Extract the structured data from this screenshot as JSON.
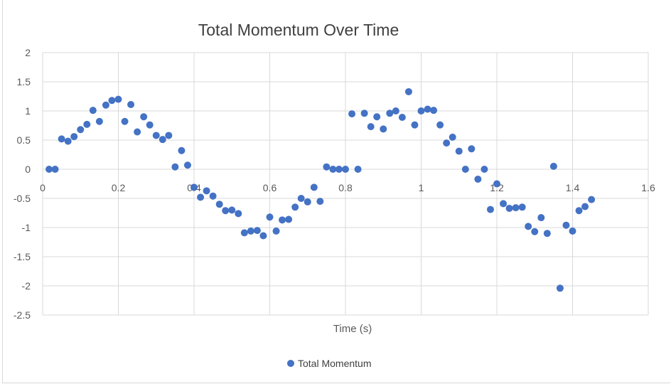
{
  "chart_data": {
    "type": "scatter",
    "title": "Total Momentum Over Time",
    "xlabel": "Time (s)",
    "ylabel": "",
    "xlim": [
      0,
      1.6
    ],
    "ylim": [
      -2.5,
      2
    ],
    "x_ticks": [
      0,
      0.2,
      0.4,
      0.6,
      0.8,
      1,
      1.2,
      1.4,
      1.6
    ],
    "x_tick_labels": [
      "0",
      "0.2",
      "0.4",
      "0.6",
      "0.8",
      "1",
      "1.2",
      "1.4",
      "1.6"
    ],
    "y_ticks": [
      2,
      1.5,
      1,
      0.5,
      0,
      -0.5,
      -1,
      -1.5,
      -2,
      -2.5
    ],
    "y_tick_labels": [
      "2",
      "1.5",
      "1",
      "0.5",
      "0",
      "-0.5",
      "-1",
      "-1.5",
      "-2",
      "-2.5"
    ],
    "grid": true,
    "legend_position": "bottom",
    "marker_color": "#4472c4",
    "series": [
      {
        "name": "Total Momentum",
        "points": [
          [
            0.017,
            0.0
          ],
          [
            0.033,
            0.0
          ],
          [
            0.05,
            0.52
          ],
          [
            0.067,
            0.48
          ],
          [
            0.083,
            0.56
          ],
          [
            0.1,
            0.68
          ],
          [
            0.117,
            0.77
          ],
          [
            0.133,
            1.01
          ],
          [
            0.15,
            0.82
          ],
          [
            0.167,
            1.1
          ],
          [
            0.183,
            1.18
          ],
          [
            0.2,
            1.2
          ],
          [
            0.217,
            0.82
          ],
          [
            0.233,
            1.11
          ],
          [
            0.25,
            0.64
          ],
          [
            0.267,
            0.9
          ],
          [
            0.283,
            0.76
          ],
          [
            0.3,
            0.58
          ],
          [
            0.317,
            0.51
          ],
          [
            0.333,
            0.58
          ],
          [
            0.35,
            0.04
          ],
          [
            0.367,
            0.32
          ],
          [
            0.383,
            0.07
          ],
          [
            0.4,
            -0.31
          ],
          [
            0.417,
            -0.48
          ],
          [
            0.433,
            -0.37
          ],
          [
            0.45,
            -0.46
          ],
          [
            0.467,
            -0.6
          ],
          [
            0.483,
            -0.71
          ],
          [
            0.5,
            -0.7
          ],
          [
            0.517,
            -0.76
          ],
          [
            0.533,
            -1.09
          ],
          [
            0.55,
            -1.06
          ],
          [
            0.567,
            -1.05
          ],
          [
            0.583,
            -1.14
          ],
          [
            0.6,
            -0.82
          ],
          [
            0.617,
            -1.06
          ],
          [
            0.633,
            -0.87
          ],
          [
            0.65,
            -0.86
          ],
          [
            0.667,
            -0.65
          ],
          [
            0.683,
            -0.5
          ],
          [
            0.7,
            -0.56
          ],
          [
            0.717,
            -0.31
          ],
          [
            0.733,
            -0.55
          ],
          [
            0.75,
            0.04
          ],
          [
            0.767,
            0.0
          ],
          [
            0.783,
            0.0
          ],
          [
            0.8,
            0.0
          ],
          [
            0.817,
            0.95
          ],
          [
            0.833,
            0.0
          ],
          [
            0.85,
            0.96
          ],
          [
            0.867,
            0.73
          ],
          [
            0.883,
            0.9
          ],
          [
            0.9,
            0.69
          ],
          [
            0.917,
            0.96
          ],
          [
            0.933,
            1.0
          ],
          [
            0.95,
            0.89
          ],
          [
            0.967,
            1.33
          ],
          [
            0.983,
            0.76
          ],
          [
            1.0,
            1.0
          ],
          [
            1.017,
            1.03
          ],
          [
            1.033,
            1.01
          ],
          [
            1.05,
            0.76
          ],
          [
            1.067,
            0.45
          ],
          [
            1.083,
            0.55
          ],
          [
            1.1,
            0.31
          ],
          [
            1.117,
            0.0
          ],
          [
            1.133,
            0.35
          ],
          [
            1.15,
            -0.17
          ],
          [
            1.167,
            0.0
          ],
          [
            1.183,
            -0.69
          ],
          [
            1.2,
            -0.25
          ],
          [
            1.217,
            -0.59
          ],
          [
            1.233,
            -0.67
          ],
          [
            1.25,
            -0.66
          ],
          [
            1.267,
            -0.65
          ],
          [
            1.283,
            -0.98
          ],
          [
            1.3,
            -1.07
          ],
          [
            1.317,
            -0.83
          ],
          [
            1.333,
            -1.1
          ],
          [
            1.35,
            0.05
          ],
          [
            1.367,
            -2.04
          ],
          [
            1.383,
            -0.96
          ],
          [
            1.4,
            -1.06
          ],
          [
            1.417,
            -0.71
          ],
          [
            1.433,
            -0.64
          ],
          [
            1.45,
            -0.52
          ]
        ]
      }
    ]
  }
}
